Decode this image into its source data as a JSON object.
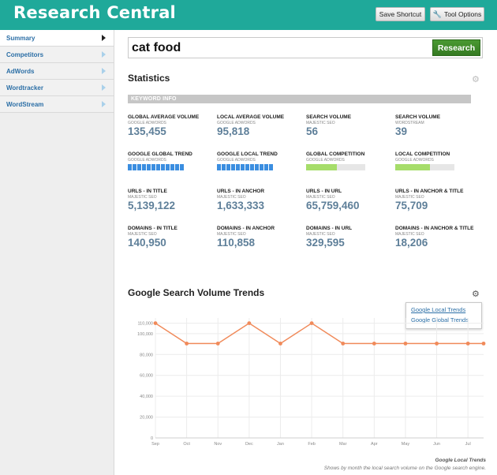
{
  "header": {
    "title": "Research Central",
    "save_shortcut": "Save Shortcut",
    "tool_options": "Tool Options",
    "color": "#1fa99a"
  },
  "sidebar": {
    "items": [
      {
        "label": "Summary",
        "active": true
      },
      {
        "label": "Competitors",
        "active": false
      },
      {
        "label": "AdWords",
        "active": false
      },
      {
        "label": "Wordtracker",
        "active": false
      },
      {
        "label": "WordStream",
        "active": false
      }
    ]
  },
  "search": {
    "value": "cat food",
    "button": "Research",
    "button_color": "#3f8a2b"
  },
  "statistics": {
    "title": "Statistics",
    "keyword_info": "KEYWORD INFO",
    "rows": [
      [
        {
          "label": "GLOBAL AVERAGE VOLUME",
          "source": "GOOGLE ADWORDS",
          "value": "135,455"
        },
        {
          "label": "LOCAL AVERAGE VOLUME",
          "source": "GOOGLE ADWORDS",
          "value": "95,818"
        },
        {
          "label": "SEARCH VOLUME",
          "source": "MAJESTIC SEO",
          "value": "56"
        },
        {
          "label": "SEARCH VOLUME",
          "source": "WORDSTREAM",
          "value": "39"
        }
      ],
      [
        {
          "label": "GOOGLE GLOBAL TREND",
          "source": "GOOGLE ADWORDS"
        },
        {
          "label": "GOOGLE LOCAL TREND",
          "source": "GOOGLE ADWORDS"
        },
        {
          "label": "GLOBAL COMPETITION",
          "source": "GOOGLE ADWORDS",
          "level": 0.52
        },
        {
          "label": "LOCAL COMPETITION",
          "source": "GOOGLE ADWORDS",
          "level": 0.58
        }
      ],
      [
        {
          "label": "URLS - IN TITLE",
          "source": "MAJESTIC SEO",
          "value": "5,139,122"
        },
        {
          "label": "URLS - IN ANCHOR",
          "source": "MAJESTIC SEO",
          "value": "1,633,333"
        },
        {
          "label": "URLS - IN URL",
          "source": "MAJESTIC SEO",
          "value": "65,759,460"
        },
        {
          "label": "URLS - IN ANCHOR & TITLE",
          "source": "MAJESTIC SEO",
          "value": "75,709"
        }
      ],
      [
        {
          "label": "DOMAINS - IN TITLE",
          "source": "MAJESTIC SEO",
          "value": "140,950"
        },
        {
          "label": "DOMAINS - IN ANCHOR",
          "source": "MAJESTIC SEO",
          "value": "110,858"
        },
        {
          "label": "DOMAINS - IN URL",
          "source": "MAJESTIC SEO",
          "value": "329,595"
        },
        {
          "label": "DOMAINS - IN ANCHOR & TITLE",
          "source": "MAJESTIC SEO",
          "value": "18,206"
        }
      ]
    ],
    "global_trend_levels": [
      1,
      1,
      1,
      1,
      1,
      1,
      1,
      1,
      1,
      1,
      1,
      1
    ],
    "local_trend_levels": [
      1,
      1,
      1,
      1,
      1,
      1,
      1,
      1,
      1,
      1,
      1,
      1
    ]
  },
  "trends": {
    "title": "Google Search Volume Trends",
    "dropdown": [
      "Google Local Trends",
      "Google Global Trends"
    ],
    "caption_title": "Google Local Trends",
    "caption": "Shows by month the local search volume on the Google search engine."
  },
  "chart_data": {
    "type": "line",
    "categories": [
      "Sep",
      "Oct",
      "Nov",
      "Dec",
      "Jan",
      "Feb",
      "Mar",
      "Apr",
      "May",
      "Jun",
      "Jul"
    ],
    "x_values": [
      0,
      1,
      2,
      3,
      4,
      5,
      6,
      7,
      8,
      9,
      10,
      10.5
    ],
    "values": [
      110000,
      90500,
      90500,
      110000,
      90500,
      110000,
      90500,
      90500,
      90500,
      90500,
      90500,
      90500
    ],
    "yticks": [
      "0",
      "20,000",
      "40,000",
      "60,000",
      "80,000",
      "100,000",
      "110,000"
    ],
    "ytick_values": [
      0,
      20000,
      40000,
      60000,
      80000,
      100000,
      110000
    ],
    "ylim": [
      0,
      115000
    ],
    "grid": true,
    "line_color": "#f08a5a"
  }
}
